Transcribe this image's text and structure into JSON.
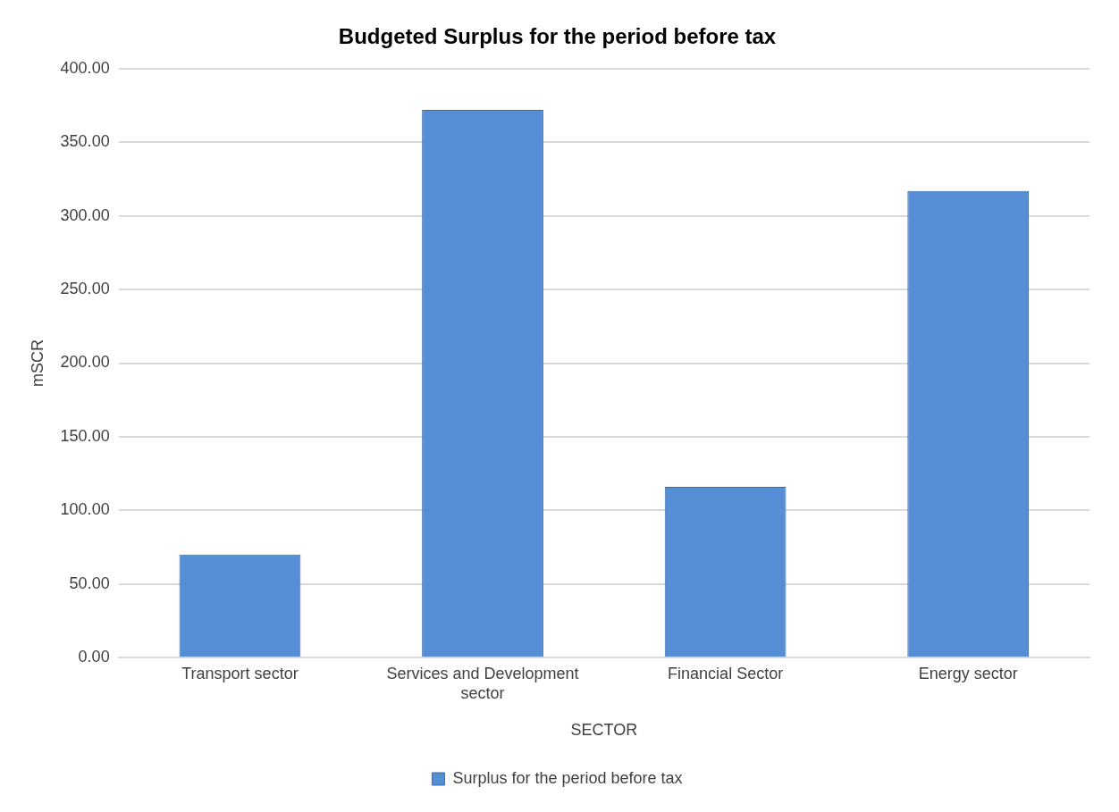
{
  "chart_data": {
    "type": "bar",
    "title": "Budgeted Surplus for the period before tax",
    "xlabel": "SECTOR",
    "ylabel": "mSCR",
    "categories": [
      "Transport sector",
      "Services and Development sector",
      "Financial Sector",
      "Energy sector"
    ],
    "series": [
      {
        "name": "Surplus for the period before tax",
        "color": "#558ed5",
        "values": [
          70,
          372,
          116,
          317
        ]
      }
    ],
    "ylim": [
      0,
      400
    ],
    "yticks": [
      {
        "value": 0,
        "label": "0.00"
      },
      {
        "value": 50,
        "label": "50.00"
      },
      {
        "value": 100,
        "label": "100.00"
      },
      {
        "value": 150,
        "label": "150.00"
      },
      {
        "value": 200,
        "label": "200.00"
      },
      {
        "value": 250,
        "label": "250.00"
      },
      {
        "value": 300,
        "label": "300.00"
      },
      {
        "value": 350,
        "label": "350.00"
      },
      {
        "value": 400,
        "label": "400.00"
      }
    ],
    "grid": "y",
    "legend": "bottom"
  }
}
